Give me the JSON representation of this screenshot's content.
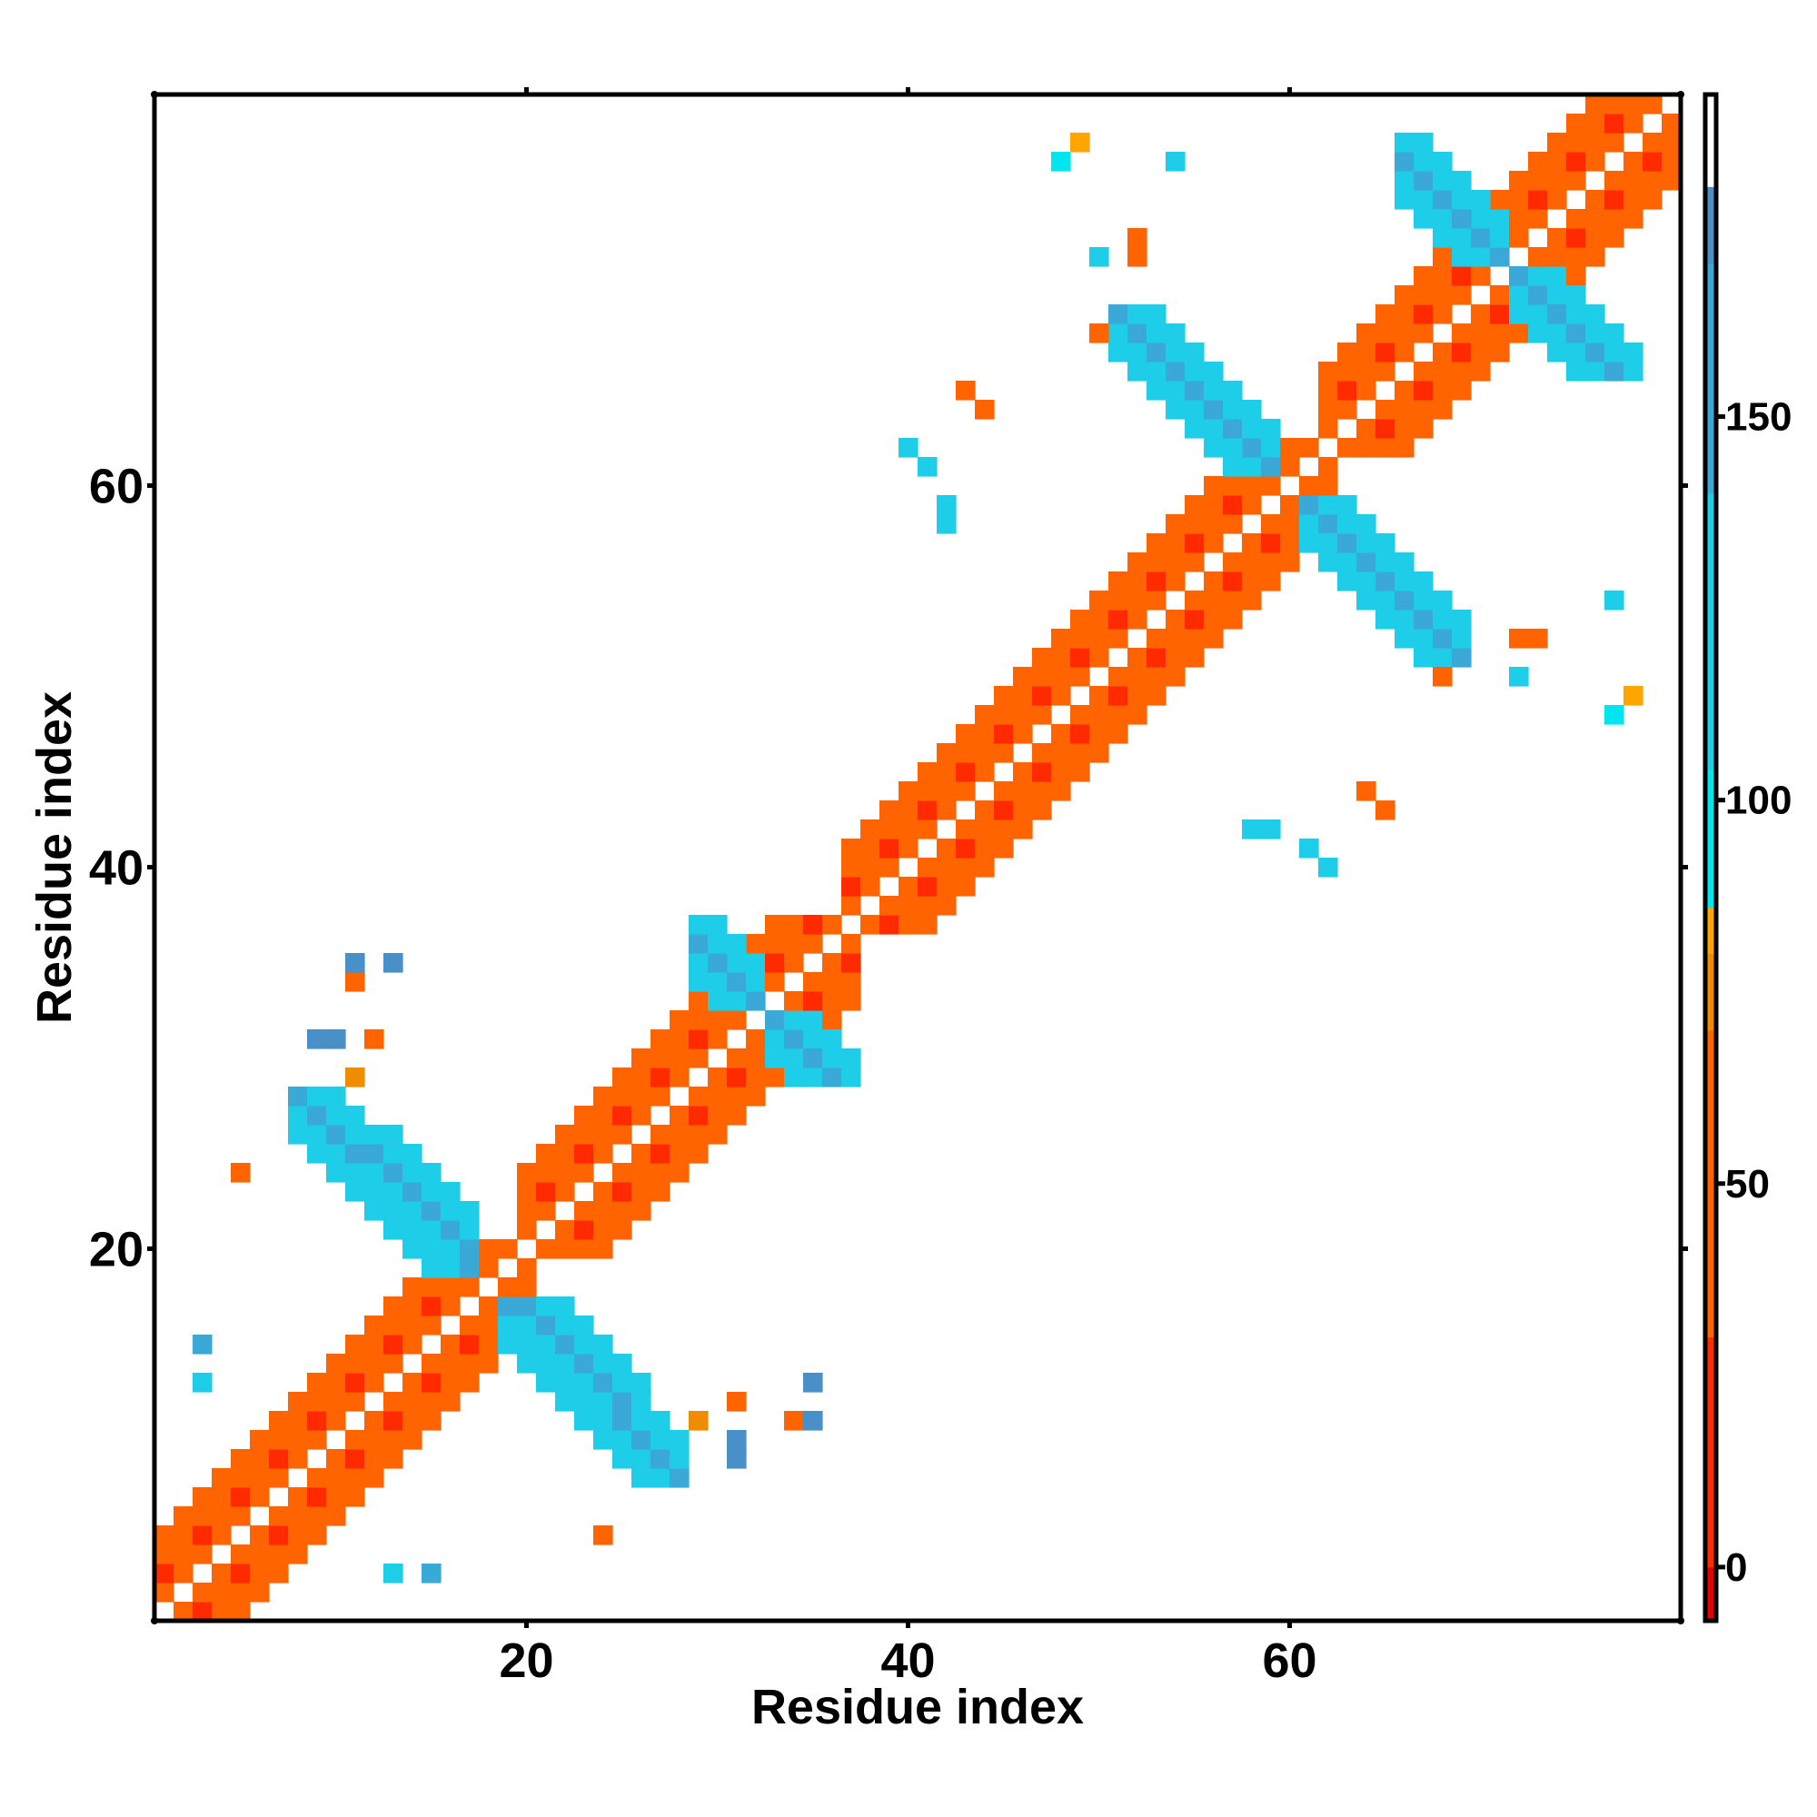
{
  "chart_data": {
    "type": "heatmap",
    "title": "",
    "xlabel": "Residue index",
    "ylabel": "Residue index",
    "xlim": [
      0.5,
      80.5
    ],
    "ylim": [
      0.5,
      80.5
    ],
    "x_ticks": [
      20,
      40,
      60
    ],
    "y_ticks": [
      20,
      40,
      60
    ],
    "colorbar": {
      "ticks": [
        0,
        50,
        100,
        150
      ],
      "range": [
        -7,
        192
      ],
      "bands": [
        {
          "from": -7,
          "to": 0,
          "color": "#e60000"
        },
        {
          "from": 0,
          "to": 30,
          "color": "#ff2a00"
        },
        {
          "from": 30,
          "to": 70,
          "color": "#ff6400"
        },
        {
          "from": 70,
          "to": 80,
          "color": "#f08c00"
        },
        {
          "from": 80,
          "to": 86,
          "color": "#ffa500"
        },
        {
          "from": 86,
          "to": 104,
          "color": "#00e5ee"
        },
        {
          "from": 104,
          "to": 140,
          "color": "#1ecde8"
        },
        {
          "from": 140,
          "to": 170,
          "color": "#3aa9d8"
        },
        {
          "from": 170,
          "to": 180,
          "color": "#4a90c8"
        },
        {
          "from": 180,
          "to": 192,
          "color": "#ffffff"
        }
      ]
    },
    "pattern": {
      "band_value": 30,
      "alternate_values": [
        5,
        55
      ],
      "helices": [
        {
          "start": 1,
          "end": 19
        },
        {
          "start": 20,
          "end": 36
        },
        {
          "start": 37,
          "end": 61
        },
        {
          "start": 62,
          "end": 80
        }
      ],
      "antiparallel_blocks": [
        {
          "sum": 36,
          "a": [
            8,
            17
          ],
          "b": [
            19,
            28
          ],
          "value": 150
        },
        {
          "sum": 37,
          "a": [
            12,
            17
          ],
          "b": [
            20,
            26
          ],
          "value": 145
        },
        {
          "sum": 65,
          "a": [
            29,
            32
          ],
          "b": [
            33,
            37
          ],
          "value": 140
        },
        {
          "sum": 120,
          "a": [
            51,
            59
          ],
          "b": [
            61,
            69
          ],
          "value": 150
        },
        {
          "sum": 143,
          "a": [
            66,
            71
          ],
          "b": [
            72,
            78
          ],
          "value": 140
        }
      ],
      "scattered": [
        {
          "x": 3,
          "y": 15,
          "value": 160
        },
        {
          "x": 3,
          "y": 13,
          "value": 120
        },
        {
          "x": 11,
          "y": 34,
          "value": 55
        },
        {
          "x": 13,
          "y": 35,
          "value": 170
        },
        {
          "x": 10,
          "y": 31,
          "value": 170
        },
        {
          "x": 12,
          "y": 31,
          "value": 60
        },
        {
          "x": 29,
          "y": 11,
          "value": 75
        },
        {
          "x": 35,
          "y": 11,
          "value": 170
        },
        {
          "x": 31,
          "y": 9,
          "value": 170
        },
        {
          "x": 24,
          "y": 5,
          "value": 60
        },
        {
          "x": 44,
          "y": 64,
          "value": 60
        },
        {
          "x": 50,
          "y": 68,
          "value": 55
        },
        {
          "x": 58,
          "y": 42,
          "value": 120
        },
        {
          "x": 61,
          "y": 41,
          "value": 120
        },
        {
          "x": 65,
          "y": 43,
          "value": 55
        },
        {
          "x": 42,
          "y": 59,
          "value": 120
        },
        {
          "x": 40,
          "y": 62,
          "value": 120
        },
        {
          "x": 72,
          "y": 52,
          "value": 55
        },
        {
          "x": 72,
          "y": 50,
          "value": 120
        },
        {
          "x": 77,
          "y": 48,
          "value": 90
        },
        {
          "x": 77,
          "y": 54,
          "value": 130
        },
        {
          "x": 52,
          "y": 73,
          "value": 60
        },
        {
          "x": 49,
          "y": 78,
          "value": 80
        }
      ]
    }
  }
}
